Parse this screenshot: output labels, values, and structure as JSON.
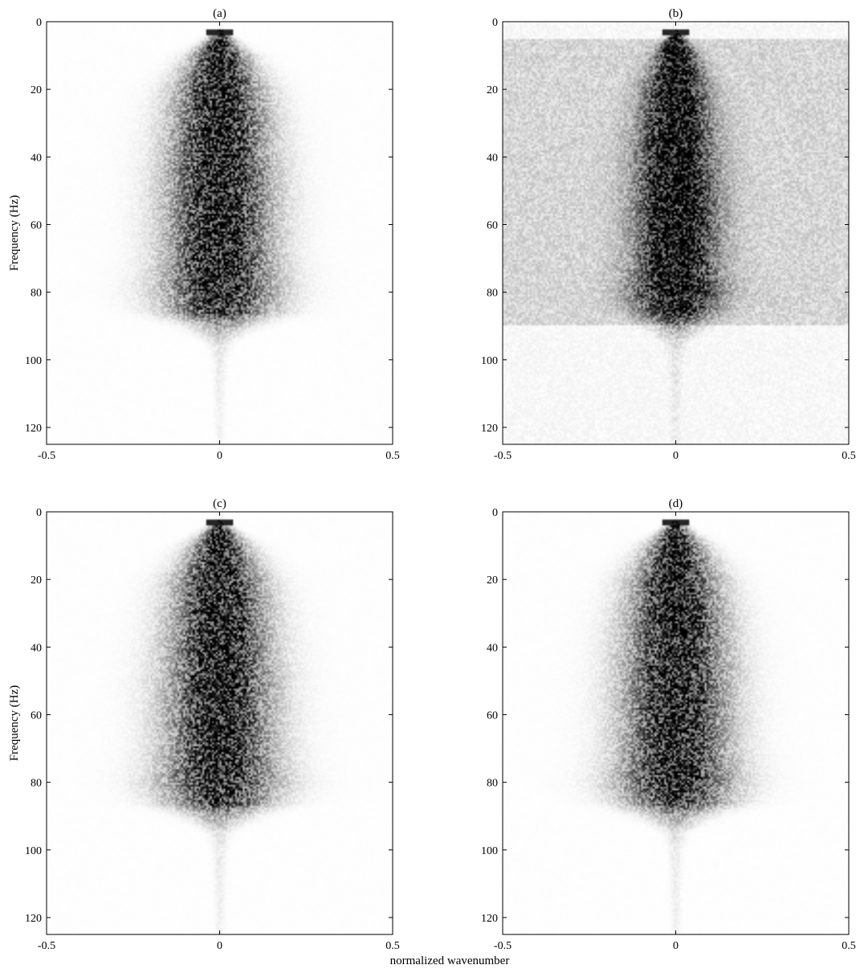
{
  "figure": {
    "xlabel": "normalized wavenumber",
    "ylabel": "Frequency (Hz)"
  },
  "chart_data": [
    {
      "type": "heatmap",
      "title": "(a)",
      "xlabel": "",
      "ylabel": "Frequency (Hz)",
      "xlim": [
        -0.5,
        0.5
      ],
      "ylim": [
        0,
        125
      ],
      "y_axis_reversed": true,
      "xticks": [
        -0.5,
        0,
        0.5
      ],
      "xtick_labels": [
        "-0.5",
        "0",
        "0.5"
      ],
      "yticks": [
        0,
        20,
        40,
        60,
        80,
        100,
        120
      ],
      "ytick_labels": [
        "0",
        "20",
        "40",
        "60",
        "80",
        "100",
        "120"
      ],
      "colormap": "gray_reversed",
      "grid": false,
      "energy_profile": {
        "frequency_hz": [
          3,
          10,
          20,
          30,
          40,
          50,
          60,
          70,
          80,
          86,
          90,
          95,
          100,
          110,
          124
        ],
        "halfwidth_wavenumber": [
          0.01,
          0.05,
          0.08,
          0.09,
          0.095,
          0.1,
          0.1,
          0.1,
          0.11,
          0.1,
          0.06,
          0.02,
          0.012,
          0.01,
          0.008
        ],
        "relative_amplitude": [
          1.0,
          1.0,
          1.0,
          1.0,
          1.0,
          1.0,
          1.0,
          1.0,
          0.95,
          0.8,
          0.35,
          0.12,
          0.08,
          0.06,
          0.05
        ]
      },
      "background_noise_level": 0.03,
      "noise_band_hz": [
        0,
        0
      ]
    },
    {
      "type": "heatmap",
      "title": "(b)",
      "xlabel": "",
      "ylabel": "",
      "xlim": [
        -0.5,
        0.5
      ],
      "ylim": [
        0,
        125
      ],
      "y_axis_reversed": true,
      "xticks": [
        -0.5,
        0,
        0.5
      ],
      "xtick_labels": [
        "-0.5",
        "0",
        "0.5"
      ],
      "yticks": [
        0,
        20,
        40,
        60,
        80,
        100,
        120
      ],
      "ytick_labels": [
        "0",
        "20",
        "40",
        "60",
        "80",
        "100",
        "120"
      ],
      "colormap": "gray_reversed",
      "grid": false,
      "energy_profile": {
        "frequency_hz": [
          3,
          10,
          20,
          30,
          40,
          50,
          60,
          70,
          80,
          86,
          90,
          95,
          100,
          110,
          124
        ],
        "halfwidth_wavenumber": [
          0.01,
          0.04,
          0.06,
          0.07,
          0.075,
          0.08,
          0.08,
          0.08,
          0.09,
          0.08,
          0.05,
          0.02,
          0.012,
          0.01,
          0.008
        ],
        "relative_amplitude": [
          1.0,
          1.0,
          1.0,
          1.0,
          1.0,
          1.0,
          1.0,
          1.0,
          0.95,
          0.8,
          0.35,
          0.12,
          0.08,
          0.06,
          0.05
        ]
      },
      "background_noise_level": 0.22,
      "noise_band_hz": [
        5,
        90
      ]
    },
    {
      "type": "heatmap",
      "title": "(c)",
      "xlabel": "",
      "ylabel": "Frequency (Hz)",
      "xlim": [
        -0.5,
        0.5
      ],
      "ylim": [
        0,
        125
      ],
      "y_axis_reversed": true,
      "xticks": [
        -0.5,
        0,
        0.5
      ],
      "xtick_labels": [
        "-0.5",
        "0",
        "0.5"
      ],
      "yticks": [
        0,
        20,
        40,
        60,
        80,
        100,
        120
      ],
      "ytick_labels": [
        "0",
        "20",
        "40",
        "60",
        "80",
        "100",
        "120"
      ],
      "colormap": "gray_reversed",
      "grid": false,
      "energy_profile": {
        "frequency_hz": [
          3,
          10,
          20,
          30,
          40,
          50,
          60,
          70,
          80,
          86,
          90,
          95,
          100,
          110,
          124
        ],
        "halfwidth_wavenumber": [
          0.01,
          0.05,
          0.08,
          0.09,
          0.095,
          0.1,
          0.1,
          0.1,
          0.11,
          0.1,
          0.06,
          0.02,
          0.012,
          0.01,
          0.008
        ],
        "relative_amplitude": [
          1.0,
          1.0,
          1.0,
          1.0,
          1.0,
          1.0,
          1.0,
          1.0,
          0.95,
          0.8,
          0.35,
          0.12,
          0.08,
          0.06,
          0.05
        ]
      },
      "background_noise_level": 0.03,
      "noise_band_hz": [
        0,
        0
      ]
    },
    {
      "type": "heatmap",
      "title": "(d)",
      "xlabel": "",
      "ylabel": "",
      "xlim": [
        -0.5,
        0.5
      ],
      "ylim": [
        0,
        125
      ],
      "y_axis_reversed": true,
      "xticks": [
        -0.5,
        0,
        0.5
      ],
      "xtick_labels": [
        "-0.5",
        "0",
        "0.5"
      ],
      "yticks": [
        0,
        20,
        40,
        60,
        80,
        100,
        120
      ],
      "ytick_labels": [
        "0",
        "20",
        "40",
        "60",
        "80",
        "100",
        "120"
      ],
      "colormap": "gray_reversed",
      "grid": false,
      "energy_profile": {
        "frequency_hz": [
          3,
          10,
          20,
          30,
          40,
          50,
          60,
          70,
          80,
          86,
          90,
          95,
          100,
          110,
          124
        ],
        "halfwidth_wavenumber": [
          0.01,
          0.05,
          0.08,
          0.09,
          0.095,
          0.1,
          0.1,
          0.1,
          0.11,
          0.1,
          0.06,
          0.02,
          0.012,
          0.01,
          0.008
        ],
        "relative_amplitude": [
          1.0,
          1.0,
          1.0,
          1.0,
          1.0,
          1.0,
          1.0,
          1.0,
          0.95,
          0.8,
          0.35,
          0.12,
          0.08,
          0.06,
          0.05
        ]
      },
      "background_noise_level": 0.03,
      "noise_band_hz": [
        0,
        0
      ]
    }
  ]
}
